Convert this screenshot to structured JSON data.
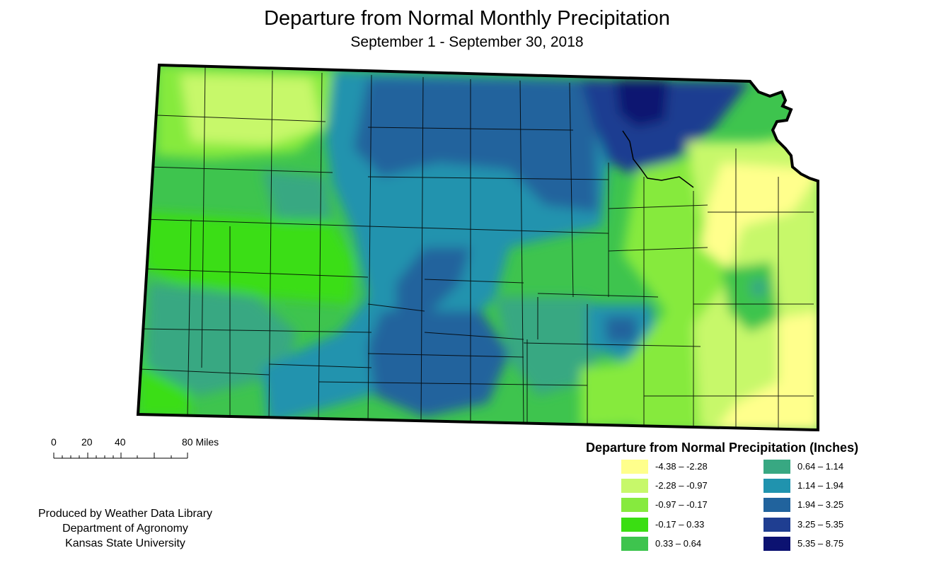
{
  "title": "Departure from Normal Monthly Precipitation",
  "subtitle": "September 1 - September 30, 2018",
  "scale_bar": {
    "ticks": [
      "0",
      "20",
      "40",
      "80 Miles"
    ]
  },
  "credits": [
    "Produced by Weather Data Library",
    "Department of Agronomy",
    "Kansas State University"
  ],
  "legend": {
    "title": "Departure from Normal Precipitation (Inches)",
    "items": [
      {
        "label": "-4.38 – -2.28",
        "color": "#ffff8c"
      },
      {
        "label": "-2.28 – -0.97",
        "color": "#c7f86a"
      },
      {
        "label": "-0.97 – -0.17",
        "color": "#86ea3e"
      },
      {
        "label": "-0.17 – 0.33",
        "color": "#3ade12"
      },
      {
        "label": "0.33 – 0.64",
        "color": "#3ec44e"
      },
      {
        "label": "0.64 – 1.14",
        "color": "#38a882"
      },
      {
        "label": "1.14 – 1.94",
        "color": "#2093ae"
      },
      {
        "label": "1.94 – 3.25",
        "color": "#21639d"
      },
      {
        "label": "3.25 – 5.35",
        "color": "#1f3e91"
      },
      {
        "label": "5.35 – 8.75",
        "color": "#0c1271"
      }
    ]
  }
}
